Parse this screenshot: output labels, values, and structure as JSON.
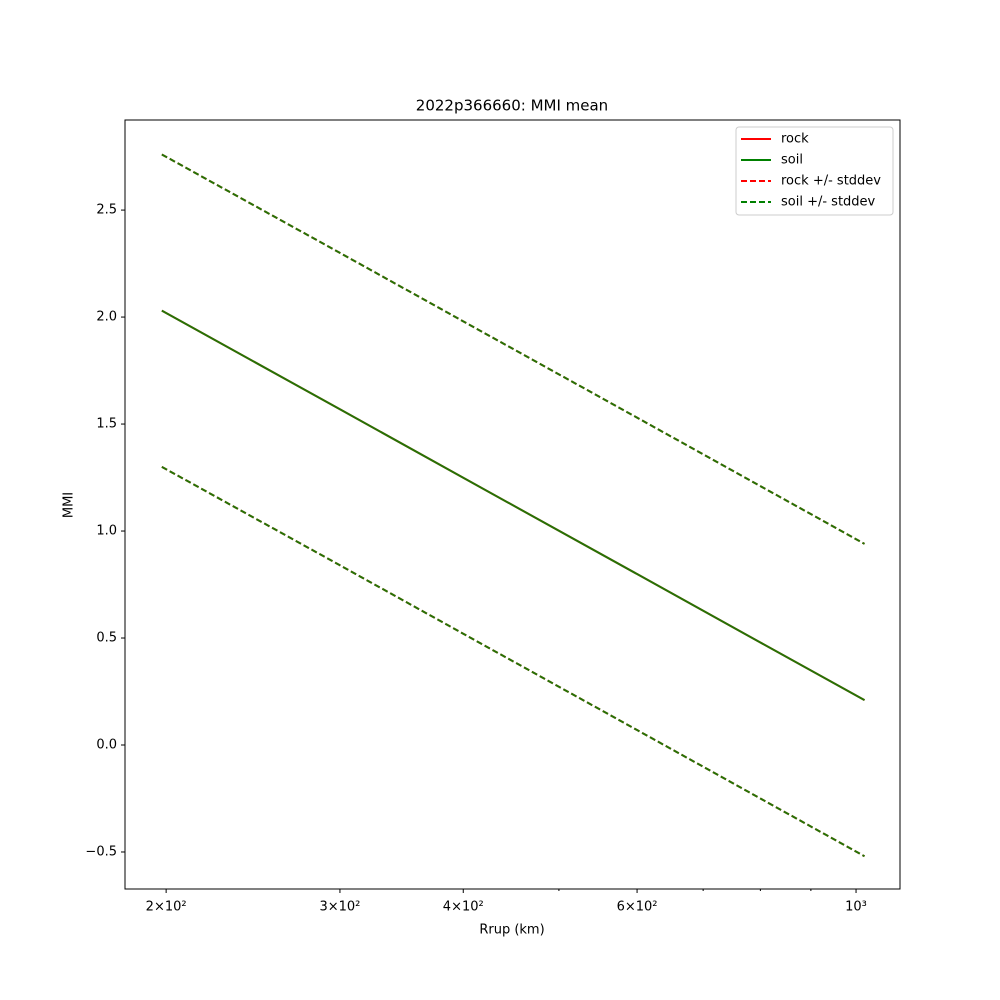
{
  "chart_data": {
    "type": "line",
    "title": "2022p366660: MMI mean",
    "xlabel": "Rrup (km)",
    "ylabel": "MMI",
    "x_scale": "log",
    "x": [
      198,
      300,
      400,
      600,
      800,
      1020
    ],
    "series": [
      {
        "name": "rock",
        "color": "#ff0000",
        "style": "solid",
        "values": [
          2.03,
          1.569,
          1.249,
          0.799,
          0.479,
          0.21
        ]
      },
      {
        "name": "soil",
        "color": "#008000",
        "style": "solid",
        "values": [
          2.03,
          1.569,
          1.249,
          0.799,
          0.479,
          0.21
        ]
      },
      {
        "name": "rock +/- stddev",
        "color": "#ff0000",
        "style": "dashed",
        "upper": [
          2.76,
          2.3,
          1.98,
          1.53,
          1.21,
          0.94
        ],
        "lower": [
          1.3,
          0.84,
          0.52,
          0.07,
          -0.25,
          -0.52
        ]
      },
      {
        "name": "soil +/- stddev",
        "color": "#008000",
        "style": "dashed",
        "upper": [
          2.76,
          2.3,
          1.98,
          1.53,
          1.21,
          0.94
        ],
        "lower": [
          1.3,
          0.84,
          0.52,
          0.07,
          -0.25,
          -0.52
        ]
      }
    ],
    "xlim": [
      181.7,
      1108
    ],
    "xticks": [
      {
        "value": 200,
        "label": "2×10²"
      },
      {
        "value": 300,
        "label": "3×10²"
      },
      {
        "value": 400,
        "label": "4×10²"
      },
      {
        "value": 600,
        "label": "6×10²"
      },
      {
        "value": 1000,
        "label": "10³"
      }
    ],
    "xminorticks": [
      500,
      700,
      800,
      900
    ],
    "ylim": [
      -0.673,
      2.921
    ],
    "yticks": [
      {
        "value": -0.5,
        "label": "−0.5"
      },
      {
        "value": 0,
        "label": "0.0"
      },
      {
        "value": 0.5,
        "label": "0.5"
      },
      {
        "value": 1,
        "label": "1.0"
      },
      {
        "value": 1.5,
        "label": "1.5"
      },
      {
        "value": 2,
        "label": "2.0"
      },
      {
        "value": 2.5,
        "label": "2.5"
      }
    ],
    "legend": "upper right"
  }
}
